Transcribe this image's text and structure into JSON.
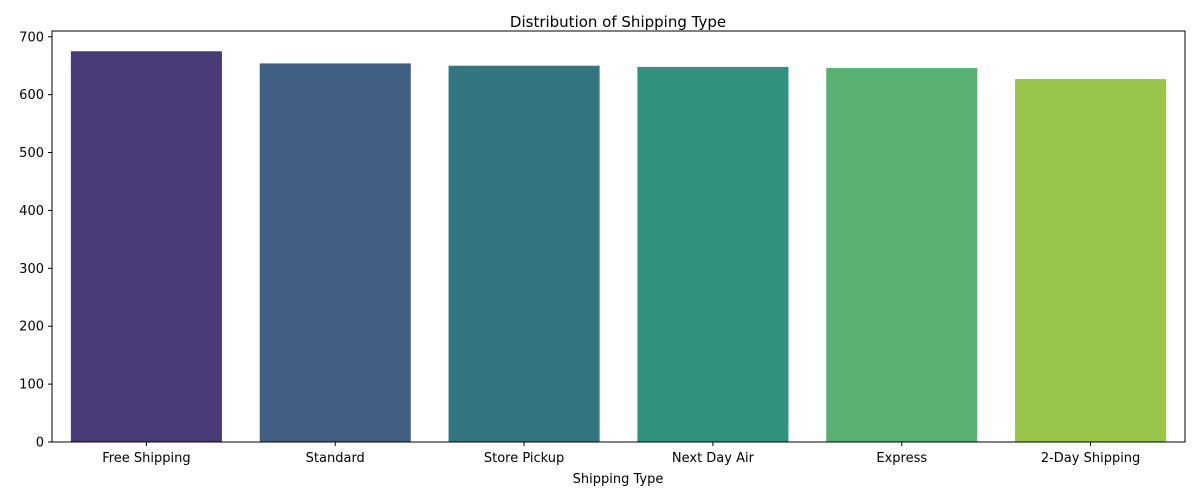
{
  "chart_data": {
    "type": "bar",
    "title": "Distribution of Shipping Type",
    "xlabel": "Shipping Type",
    "ylabel": "",
    "categories": [
      "Free Shipping",
      "Standard",
      "Store Pickup",
      "Next Day Air",
      "Express",
      "2-Day Shipping"
    ],
    "values": [
      675,
      654,
      650,
      648,
      646,
      627
    ],
    "colors": [
      "#4a3b76",
      "#405f83",
      "#347680",
      "#31927f",
      "#58b172",
      "#9ac54c"
    ],
    "ylim": [
      0,
      710
    ],
    "yticks": [
      0,
      100,
      200,
      300,
      400,
      500,
      600,
      700
    ],
    "grid": false,
    "legend": "none"
  }
}
